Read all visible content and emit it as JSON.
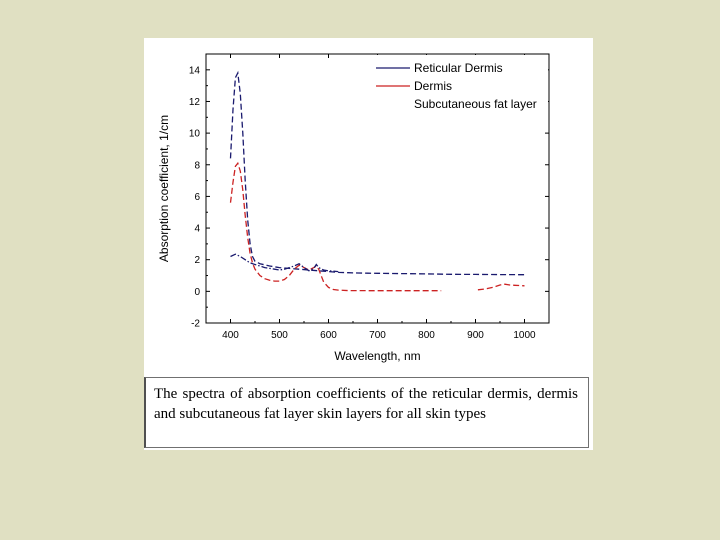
{
  "caption": "The spectra of absorption coefficients of the reticular dermis, dermis and subcutaneous fat layer skin layers for all skin types",
  "chart_data": {
    "type": "line",
    "title": "",
    "xlabel": "Wavelength, nm",
    "ylabel": "Absorption coefficient, 1/cm",
    "xlim": [
      350,
      1050
    ],
    "ylim": [
      -2,
      15
    ],
    "xticks": [
      400,
      500,
      600,
      700,
      800,
      900,
      1000
    ],
    "yticks": [
      -2,
      0,
      2,
      4,
      6,
      8,
      10,
      12,
      14
    ],
    "legend_position": "top-right",
    "grid": false,
    "series": [
      {
        "name": "Reticular Dermis",
        "color": "#1a1a6e",
        "style": "dashed",
        "points": [
          [
            400,
            8.4
          ],
          [
            405,
            11.5
          ],
          [
            410,
            13.5
          ],
          [
            415,
            13.8
          ],
          [
            420,
            12.5
          ],
          [
            425,
            10.0
          ],
          [
            430,
            7.0
          ],
          [
            435,
            4.5
          ],
          [
            440,
            3.0
          ],
          [
            445,
            2.2
          ],
          [
            450,
            1.9
          ],
          [
            460,
            1.75
          ],
          [
            480,
            1.6
          ],
          [
            500,
            1.5
          ],
          [
            520,
            1.45
          ],
          [
            540,
            1.4
          ],
          [
            560,
            1.35
          ],
          [
            580,
            1.3
          ],
          [
            600,
            1.25
          ],
          [
            620,
            1.2
          ],
          [
            640,
            1.18
          ],
          [
            660,
            1.16
          ],
          [
            680,
            1.15
          ],
          [
            700,
            1.14
          ],
          [
            750,
            1.12
          ],
          [
            800,
            1.1
          ],
          [
            850,
            1.08
          ],
          [
            900,
            1.07
          ],
          [
            950,
            1.06
          ],
          [
            1000,
            1.05
          ]
        ]
      },
      {
        "name": "Dermis",
        "color": "#cc2222",
        "style": "dashed",
        "points": [
          [
            400,
            5.6
          ],
          [
            405,
            6.9
          ],
          [
            410,
            7.9
          ],
          [
            415,
            8.1
          ],
          [
            420,
            7.6
          ],
          [
            425,
            6.4
          ],
          [
            430,
            4.8
          ],
          [
            435,
            3.4
          ],
          [
            440,
            2.4
          ],
          [
            445,
            1.8
          ],
          [
            450,
            1.4
          ],
          [
            460,
            1.0
          ],
          [
            470,
            0.8
          ],
          [
            480,
            0.7
          ],
          [
            490,
            0.65
          ],
          [
            500,
            0.65
          ],
          [
            510,
            0.75
          ],
          [
            520,
            1.0
          ],
          [
            530,
            1.4
          ],
          [
            540,
            1.65
          ],
          [
            550,
            1.5
          ],
          [
            560,
            1.35
          ],
          [
            570,
            1.5
          ],
          [
            575,
            1.6
          ],
          [
            580,
            1.4
          ],
          [
            590,
            0.6
          ],
          [
            600,
            0.25
          ],
          [
            610,
            0.12
          ],
          [
            620,
            0.08
          ],
          [
            640,
            0.05
          ],
          [
            700,
            0.04
          ],
          [
            800,
            0.04
          ],
          [
            830,
            0.04
          ],
          [
            null,
            null
          ],
          [
            905,
            0.1
          ],
          [
            920,
            0.15
          ],
          [
            935,
            0.25
          ],
          [
            950,
            0.4
          ],
          [
            960,
            0.45
          ],
          [
            970,
            0.4
          ],
          [
            980,
            0.38
          ],
          [
            1000,
            0.35
          ]
        ]
      },
      {
        "name": "Subcutaneous fat layer",
        "color": "#1a1a6e",
        "style": "dashdot",
        "points": [
          [
            400,
            2.2
          ],
          [
            410,
            2.35
          ],
          [
            420,
            2.2
          ],
          [
            430,
            2.0
          ],
          [
            440,
            1.8
          ],
          [
            450,
            1.7
          ],
          [
            460,
            1.6
          ],
          [
            470,
            1.5
          ],
          [
            480,
            1.45
          ],
          [
            490,
            1.4
          ],
          [
            500,
            1.35
          ],
          [
            510,
            1.4
          ],
          [
            520,
            1.5
          ],
          [
            530,
            1.6
          ],
          [
            540,
            1.75
          ],
          [
            550,
            1.5
          ],
          [
            560,
            1.3
          ],
          [
            570,
            1.45
          ],
          [
            575,
            1.7
          ],
          [
            580,
            1.5
          ],
          [
            590,
            1.35
          ],
          [
            600,
            1.3
          ],
          [
            610,
            1.28
          ],
          [
            620,
            1.25
          ]
        ]
      }
    ]
  }
}
